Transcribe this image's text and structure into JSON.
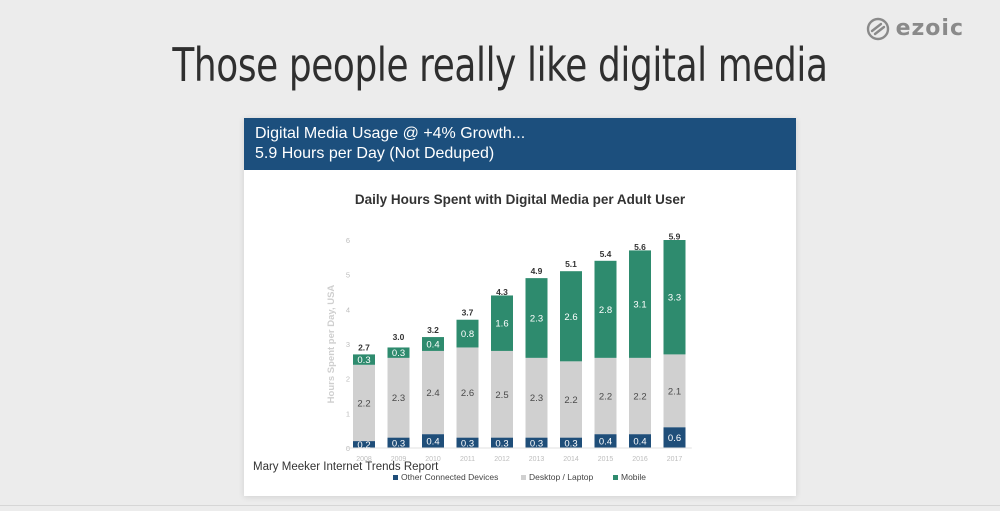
{
  "brand": {
    "logo_text": "ezoic"
  },
  "slide": {
    "title": "Those people really like digital media",
    "header_line1": "Digital Media Usage @ +4% Growth...",
    "header_line2": "5.9 Hours per Day (Not Deduped)",
    "source": "Mary Meeker Internet Trends Report"
  },
  "colors": {
    "header_bg": "#1c4f7d",
    "other_devices": "#1f4e79",
    "desktop": "#d0d0d0",
    "mobile": "#2e8b6e"
  },
  "chart_data": {
    "type": "bar",
    "stacked": true,
    "title": "Daily Hours Spent with Digital Media per Adult User",
    "xlabel": "",
    "ylabel": "Hours Spent per Day, USA",
    "ylim": [
      0,
      6
    ],
    "yticks": [
      "0",
      "1",
      "2",
      "3",
      "4",
      "5",
      "6"
    ],
    "categories": [
      "2008",
      "2009",
      "2010",
      "2011",
      "2012",
      "2013",
      "2014",
      "2015",
      "2016",
      "2017"
    ],
    "series": [
      {
        "name": "Other Connected Devices",
        "values": [
          0.2,
          0.3,
          0.4,
          0.3,
          0.3,
          0.3,
          0.3,
          0.4,
          0.4,
          0.6
        ],
        "labels": [
          "0.2",
          "0.3",
          "0.4",
          "0.3",
          "0.3",
          "0.3",
          "0.3",
          "0.4",
          "0.4",
          "0.6"
        ]
      },
      {
        "name": "Desktop / Laptop",
        "values": [
          2.2,
          2.3,
          2.4,
          2.6,
          2.5,
          2.3,
          2.2,
          2.2,
          2.2,
          2.1
        ],
        "labels": [
          "2.2",
          "2.3",
          "2.4",
          "2.6",
          "2.5",
          "2.3",
          "2.2",
          "2.2",
          "2.2",
          "2.1"
        ]
      },
      {
        "name": "Mobile",
        "values": [
          0.3,
          0.3,
          0.4,
          0.8,
          1.6,
          2.3,
          2.6,
          2.8,
          3.1,
          3.3
        ],
        "labels": [
          "0.3",
          "0.3",
          "0.4",
          "0.8",
          "1.6",
          "2.3",
          "2.6",
          "2.8",
          "3.1",
          "3.3"
        ]
      }
    ],
    "totals": [
      2.7,
      3.0,
      3.2,
      3.7,
      4.3,
      4.9,
      5.1,
      5.4,
      5.6,
      5.9
    ],
    "total_labels": [
      "2.7",
      "3.0",
      "3.2",
      "3.7",
      "4.3",
      "4.9",
      "5.1",
      "5.4",
      "5.6",
      "5.9"
    ],
    "legend": [
      "Other Connected Devices",
      "Desktop / Laptop",
      "Mobile"
    ],
    "legend_position": "bottom",
    "grid": false
  }
}
